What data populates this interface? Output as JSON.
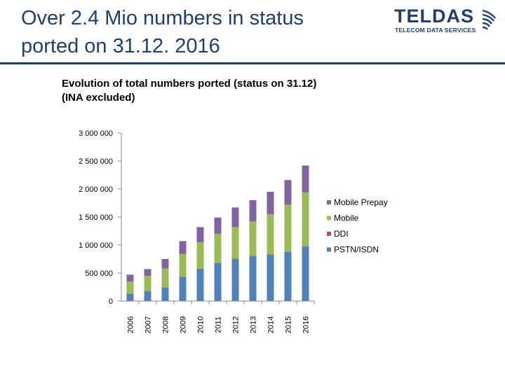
{
  "slide": {
    "title_line1": "Over 2.4 Mio numbers in status",
    "title_line2": "ported on 31.12. 2016"
  },
  "logo": {
    "name": "TELDAS",
    "subtitle": "TELECOM DATA SERVICES",
    "mark_icon": "arc-waves-icon"
  },
  "colors": {
    "title": "#1f3f6e",
    "header_rule": "#1f3f6e"
  },
  "chart_data": {
    "type": "bar",
    "stacked": true,
    "title_line1": "Evolution of total numbers ported (status on 31.12)",
    "title_line2": "(INA excluded)",
    "xlabel": "",
    "ylabel": "",
    "categories": [
      "2006",
      "2007",
      "2008",
      "2009",
      "2010",
      "2011",
      "2012",
      "2013",
      "2014",
      "2015",
      "2016"
    ],
    "ylim": [
      0,
      3000000
    ],
    "yticks": [
      0,
      500000,
      1000000,
      1500000,
      2000000,
      2500000,
      3000000
    ],
    "ytick_labels": [
      "0",
      "500 000",
      "1 000 000",
      "1 500 000",
      "2 000 000",
      "2 500 000",
      "3 000 000"
    ],
    "series": [
      {
        "name": "PSTN/ISDN",
        "color": "#4f81bd",
        "values": [
          130000,
          170000,
          240000,
          430000,
          570000,
          680000,
          750000,
          800000,
          830000,
          880000,
          970000
        ]
      },
      {
        "name": "DDI",
        "color": "#c0504d",
        "values": [
          5000,
          5000,
          5000,
          5000,
          5000,
          5000,
          5000,
          5000,
          5000,
          5000,
          5000
        ]
      },
      {
        "name": "Mobile",
        "color": "#9bbb59",
        "values": [
          215000,
          275000,
          335000,
          405000,
          475000,
          515000,
          565000,
          615000,
          715000,
          835000,
          965000
        ]
      },
      {
        "name": "Mobile Prepay",
        "color": "#8064a2",
        "values": [
          120000,
          120000,
          170000,
          230000,
          270000,
          290000,
          350000,
          380000,
          400000,
          440000,
          480000
        ]
      }
    ],
    "legend_order": [
      "Mobile Prepay",
      "Mobile",
      "DDI",
      "PSTN/ISDN"
    ],
    "legend_position": "right",
    "grid": false
  }
}
